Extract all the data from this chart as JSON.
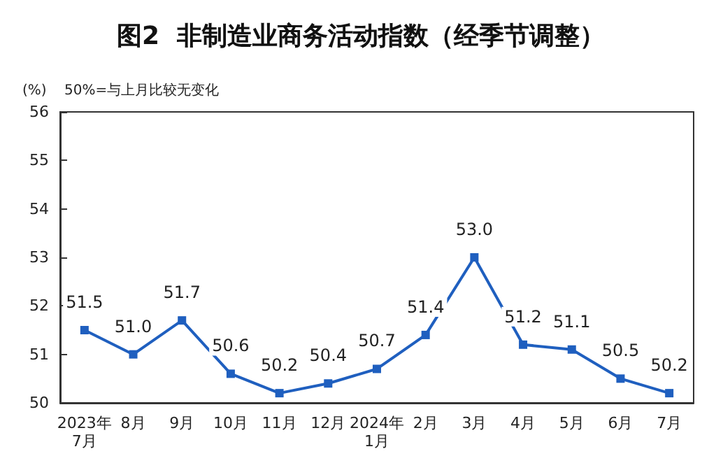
{
  "chart_data": {
    "type": "line",
    "title": "图2  非制造业商务活动指数（经季节调整）",
    "ylabel": "(%)",
    "annotations": [
      "50%=与上月比较无变化"
    ],
    "categories": [
      "2023年\n7月",
      "8月",
      "9月",
      "10月",
      "11月",
      "12月",
      "2024年\n1月",
      "2月",
      "3月",
      "4月",
      "5月",
      "6月",
      "7月"
    ],
    "series": [
      {
        "color": "#1f5fbf",
        "values": [
          51.5,
          51.0,
          51.7,
          50.6,
          50.2,
          50.4,
          50.7,
          51.4,
          53.0,
          51.2,
          51.1,
          50.5,
          50.2
        ],
        "value_labels": [
          "51.5",
          "51.0",
          "51.7",
          "50.6",
          "50.2",
          "50.4",
          "50.7",
          "51.4",
          "53.0",
          "51.2",
          "51.1",
          "50.5",
          "50.2"
        ]
      }
    ],
    "ylim": [
      50,
      56
    ],
    "yticks": [
      50,
      51,
      52,
      53,
      54,
      55,
      56
    ],
    "marker": "square",
    "line_style": "solid",
    "grid": false
  }
}
